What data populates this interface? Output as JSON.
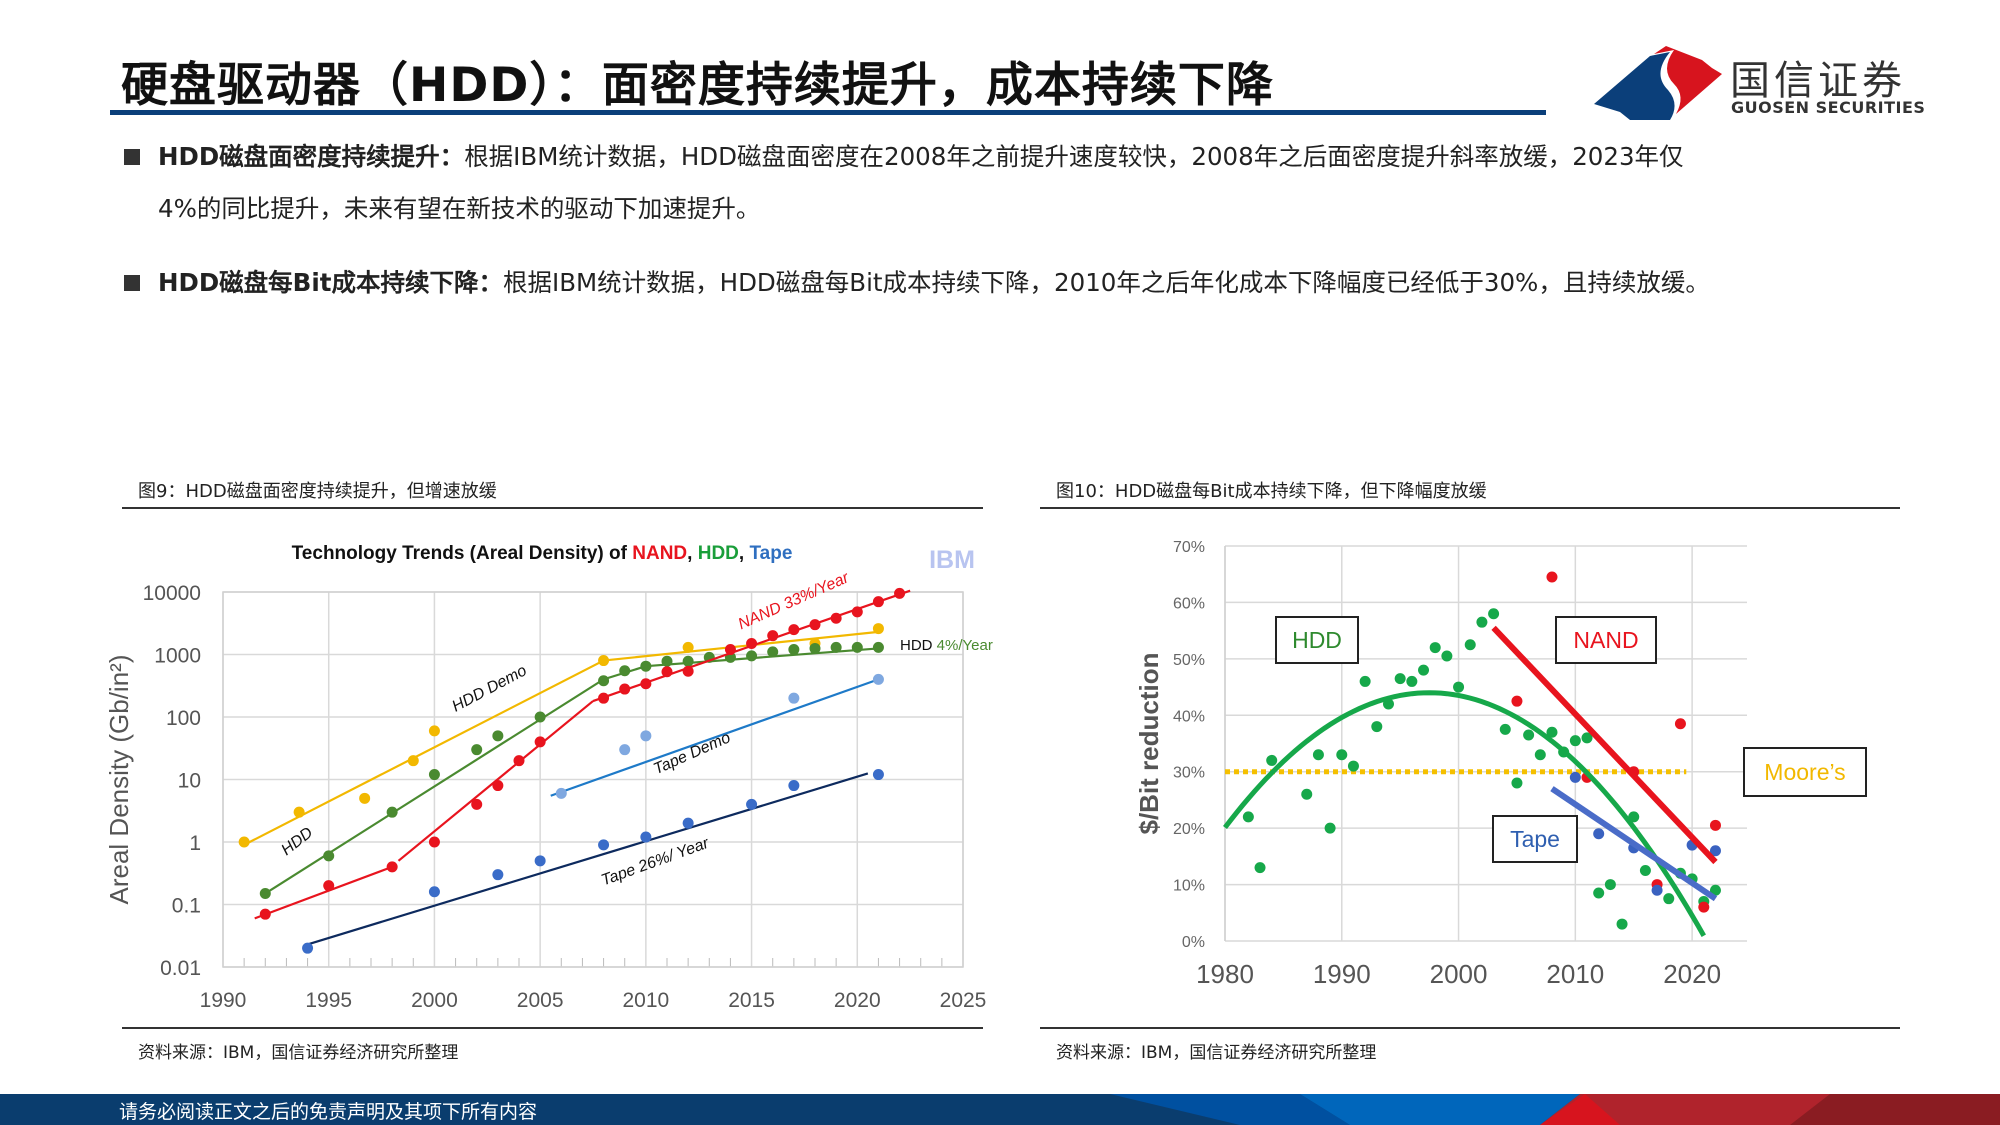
{
  "header": {
    "title": "硬盘驱动器（HDD）：面密度持续提升，成本持续下降",
    "logo_cn": "国信证券",
    "logo_en": "GUOSEN SECURITIES"
  },
  "bullets": [
    {
      "bold": "HDD磁盘面密度持续提升：",
      "text": "根据IBM统计数据，HDD磁盘面密度在2008年之前提升速度较快，2008年之后面密度提升斜率放缓，2023年仅",
      "text2": "4%的同比提升，未来有望在新技术的驱动下加速提升。"
    },
    {
      "bold": "HDD磁盘每Bit成本持续下降：",
      "text": "根据IBM统计数据，HDD磁盘每Bit成本持续下降，2010年之后年化成本下降幅度已经低于30%，且持续放缓。"
    }
  ],
  "figures": [
    {
      "caption": "图9：HDD磁盘面密度持续提升，但增速放缓",
      "source": "资料来源：IBM，国信证券经济研究所整理"
    },
    {
      "caption": "图10：HDD磁盘每Bit成本持续下降，但下降幅度放缓",
      "source": "资料来源：IBM，国信证券经济研究所整理"
    }
  ],
  "footer": {
    "text": "请务必阅读正文之后的免责声明及其项下所有内容"
  },
  "colors": {
    "brand_blue": "#0b3f7a",
    "brand_red": "#d7141e",
    "nand": "#e8141e",
    "hdd": "#1a9e3a",
    "tape": "#2f5fb0",
    "moores": "#f5c000"
  },
  "chart_data": [
    {
      "type": "scatter",
      "title_parts": [
        {
          "t": "Technology Trends (Areal Density) of ",
          "c": "#111"
        },
        {
          "t": "NAND",
          "c": "#e8141e"
        },
        {
          "t": ", ",
          "c": "#111"
        },
        {
          "t": "HDD",
          "c": "#1a9e3a"
        },
        {
          "t": ", ",
          "c": "#111"
        },
        {
          "t": "Tape",
          "c": "#2f6fc0"
        }
      ],
      "watermark": "IBM",
      "ylabel": "Areal Density (Gb/in²)",
      "yscale": "log",
      "ylim": [
        0.01,
        10000
      ],
      "xlim": [
        1990,
        2025
      ],
      "yticks": [
        "0.01",
        "0.1",
        "1",
        "10",
        "100",
        "1000",
        "10000"
      ],
      "xticks": [
        "1990",
        "1995",
        "2000",
        "2005",
        "2010",
        "2015",
        "2020",
        "2025"
      ],
      "grid": true,
      "series": [
        {
          "name": "HDD Demo",
          "color": "#f2b800",
          "points": [
            [
              1991,
              1
            ],
            [
              1993.6,
              3
            ],
            [
              1996.7,
              5
            ],
            [
              1999,
              20
            ],
            [
              2000,
              60
            ],
            [
              2008,
              800
            ],
            [
              2012,
              1300
            ],
            [
              2018,
              1500
            ],
            [
              2021,
              2600
            ]
          ],
          "trend": [
            [
              [
                1991,
                0.9
              ],
              [
                2008,
                800
              ],
              [
                2021,
                2300
              ]
            ]
          ]
        },
        {
          "name": "HDD",
          "color": "#4a8a30",
          "points": [
            [
              1992,
              0.15
            ],
            [
              1995,
              0.6
            ],
            [
              1998,
              3
            ],
            [
              2000,
              12
            ],
            [
              2002,
              30
            ],
            [
              2003,
              50
            ],
            [
              2005,
              100
            ],
            [
              2008,
              380
            ],
            [
              2009,
              550
            ],
            [
              2010,
              650
            ],
            [
              2011,
              780
            ],
            [
              2012,
              780
            ],
            [
              2013,
              900
            ],
            [
              2014,
              900
            ],
            [
              2015,
              950
            ],
            [
              2016,
              1100
            ],
            [
              2017,
              1200
            ],
            [
              2018,
              1250
            ],
            [
              2019,
              1300
            ],
            [
              2020,
              1300
            ],
            [
              2021,
              1300
            ]
          ],
          "trend": [
            [
              [
                1992,
                0.15
              ],
              [
                2008,
                400
              ],
              [
                2010,
                650
              ],
              [
                2021,
                1250
              ]
            ]
          ]
        },
        {
          "name": "NAND",
          "color": "#e8141e",
          "points": [
            [
              1992,
              0.07
            ],
            [
              1995,
              0.2
            ],
            [
              1998,
              0.4
            ],
            [
              2000,
              1
            ],
            [
              2002,
              4
            ],
            [
              2003,
              8
            ],
            [
              2004,
              20
            ],
            [
              2005,
              40
            ],
            [
              2008,
              200
            ],
            [
              2009,
              280
            ],
            [
              2010,
              340
            ],
            [
              2011,
              530
            ],
            [
              2012,
              540
            ],
            [
              2014,
              1200
            ],
            [
              2015,
              1500
            ],
            [
              2016,
              2000
            ],
            [
              2017,
              2500
            ],
            [
              2018,
              3000
            ],
            [
              2019,
              3800
            ],
            [
              2020,
              4800
            ],
            [
              2021,
              7000
            ],
            [
              2022,
              9500
            ]
          ],
          "trend": [
            [
              [
                1991.5,
                0.06
              ],
              [
                1998,
                0.4
              ]
            ],
            [
              [
                1998.3,
                0.5
              ],
              [
                2007.5,
                180
              ]
            ],
            [
              [
                2007.5,
                180
              ],
              [
                2022.5,
                10500
              ]
            ]
          ]
        },
        {
          "name": "Tape Demo",
          "color": "#7fa8e0",
          "line_color": "#1e7ac8",
          "points": [
            [
              2006,
              6
            ],
            [
              2009,
              30
            ],
            [
              2010,
              50
            ],
            [
              2017,
              200
            ],
            [
              2021,
              400
            ]
          ],
          "trend": [
            [
              [
                2005.5,
                5.5
              ],
              [
                2021,
                400
              ]
            ]
          ]
        },
        {
          "name": "Tape",
          "color": "#3a6cc8",
          "line_color": "#0d2a5e",
          "points": [
            [
              1994,
              0.02
            ],
            [
              2000,
              0.16
            ],
            [
              2003,
              0.3
            ],
            [
              2005,
              0.5
            ],
            [
              2008,
              0.9
            ],
            [
              2010,
              1.2
            ],
            [
              2012,
              2
            ],
            [
              2015,
              4
            ],
            [
              2017,
              8
            ],
            [
              2021,
              12
            ]
          ],
          "trend": [
            [
              [
                1994,
                0.023
              ],
              [
                2020.5,
                12.5
              ]
            ]
          ]
        }
      ],
      "annotations": [
        {
          "text": "NAND 33%/Year",
          "x": 2014.5,
          "y": 2500,
          "angle": -24,
          "color": "#e8141e"
        },
        {
          "text": "HDD Demo",
          "x": 2001,
          "y": 120,
          "angle": -28,
          "color": "#111"
        },
        {
          "text": "HDD",
          "x": 1993,
          "y": 0.6,
          "angle": -38,
          "color": "#111"
        },
        {
          "text": "Tape Demo",
          "x": 2010.5,
          "y": 12,
          "angle": -24,
          "color": "#111"
        },
        {
          "text": "Tape  26%/ Year",
          "x": 2008,
          "y": 0.2,
          "angle": -20,
          "color": "#111"
        }
      ],
      "hdd_rate_label": {
        "prefix": "HDD ",
        "rate": "4%/Year"
      }
    },
    {
      "type": "scatter",
      "ylabel": "$/Bit reduction",
      "ylim": [
        0,
        70
      ],
      "xlim": [
        1980,
        2024.7
      ],
      "yticks": [
        "0%",
        "10%",
        "20%",
        "30%",
        "40%",
        "50%",
        "60%",
        "70%"
      ],
      "xticks": [
        "1980",
        "1990",
        "2000",
        "2010",
        "2020"
      ],
      "grid": true,
      "series": [
        {
          "name": "HDD",
          "color": "#16a84a",
          "points": [
            [
              1982,
              22
            ],
            [
              1983,
              13
            ],
            [
              1984,
              32
            ],
            [
              1987,
              26
            ],
            [
              1988,
              33
            ],
            [
              1989,
              20
            ],
            [
              1990,
              33
            ],
            [
              1991,
              31
            ],
            [
              1992,
              46
            ],
            [
              1993,
              38
            ],
            [
              1994,
              42
            ],
            [
              1995,
              46.5
            ],
            [
              1996,
              46
            ],
            [
              1997,
              48
            ],
            [
              1998,
              52
            ],
            [
              1999,
              50.5
            ],
            [
              2000,
              45
            ],
            [
              2001,
              52.5
            ],
            [
              2002,
              56.5
            ],
            [
              2003,
              58
            ],
            [
              2004,
              37.5
            ],
            [
              2005,
              28
            ],
            [
              2006,
              36.5
            ],
            [
              2007,
              33
            ],
            [
              2008,
              37
            ],
            [
              2009,
              33.5
            ],
            [
              2010,
              35.5
            ],
            [
              2011,
              36
            ],
            [
              2012,
              8.5
            ],
            [
              2013,
              10
            ],
            [
              2014,
              3
            ],
            [
              2015,
              22
            ],
            [
              2016,
              12.5
            ],
            [
              2018,
              7.5
            ],
            [
              2019,
              12
            ],
            [
              2020,
              11
            ],
            [
              2021,
              7
            ],
            [
              2022,
              9
            ]
          ],
          "fit": {
            "kind": "quadratic",
            "peak_x": 1997.5,
            "peak_y": 44,
            "a": 0.078,
            "x": [
              1980,
              2021
            ]
          }
        },
        {
          "name": "NAND",
          "color": "#e8141e",
          "points": [
            [
              2005,
              42.5
            ],
            [
              2008,
              64.5
            ],
            [
              2011,
              29
            ],
            [
              2015,
              30
            ],
            [
              2017,
              10
            ],
            [
              2019,
              38.5
            ],
            [
              2021,
              6
            ],
            [
              2022,
              20.5
            ]
          ],
          "trend": [
            [
              [
                2003,
                55.5
              ],
              [
                2022,
                14
              ]
            ]
          ]
        },
        {
          "name": "Tape",
          "color": "#3a62c0",
          "line_color": "#4a6cc8",
          "points": [
            [
              2010,
              29
            ],
            [
              2012,
              19
            ],
            [
              2015,
              16.5
            ],
            [
              2017,
              9
            ],
            [
              2020,
              17
            ],
            [
              2022,
              16
            ]
          ],
          "trend": [
            [
              [
                2008,
                27
              ],
              [
                2022,
                7.5
              ]
            ]
          ]
        }
      ],
      "reference_line": {
        "name": "Moore's",
        "y": 30,
        "x": [
          1980,
          2019.5
        ],
        "color": "#f5c000",
        "style": "dotted"
      },
      "labels": [
        {
          "text": "HDD",
          "color": "#2e8a2e"
        },
        {
          "text": "NAND",
          "color": "#e8141e"
        },
        {
          "text": "Tape",
          "color": "#2f5fb0"
        },
        {
          "text": "Moore’s",
          "color": "#f2b800"
        }
      ]
    }
  ]
}
